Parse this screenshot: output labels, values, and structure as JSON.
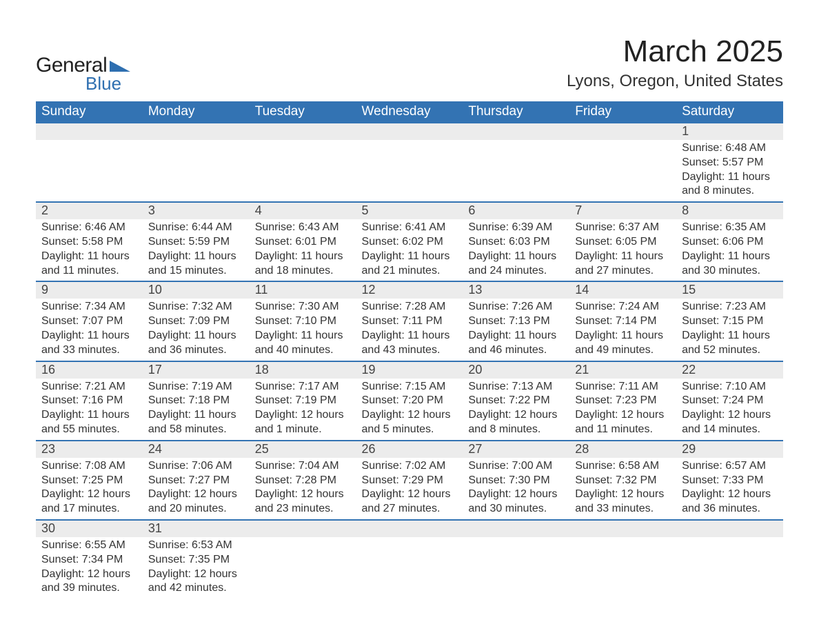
{
  "logo": {
    "line1": "General",
    "line2": "Blue",
    "tri_color": "#2e6fb0"
  },
  "title": "March 2025",
  "subtitle": "Lyons, Oregon, United States",
  "theme": {
    "header_bg": "#3373b3",
    "header_fg": "#ffffff",
    "daynum_bg": "#ececec",
    "row_border": "#3373b3",
    "text": "#333333"
  },
  "day_headers": [
    "Sunday",
    "Monday",
    "Tuesday",
    "Wednesday",
    "Thursday",
    "Friday",
    "Saturday"
  ],
  "weeks": [
    [
      null,
      null,
      null,
      null,
      null,
      null,
      {
        "n": "1",
        "sr": "6:48 AM",
        "ss": "5:57 PM",
        "dl": "11 hours and 8 minutes."
      }
    ],
    [
      {
        "n": "2",
        "sr": "6:46 AM",
        "ss": "5:58 PM",
        "dl": "11 hours and 11 minutes."
      },
      {
        "n": "3",
        "sr": "6:44 AM",
        "ss": "5:59 PM",
        "dl": "11 hours and 15 minutes."
      },
      {
        "n": "4",
        "sr": "6:43 AM",
        "ss": "6:01 PM",
        "dl": "11 hours and 18 minutes."
      },
      {
        "n": "5",
        "sr": "6:41 AM",
        "ss": "6:02 PM",
        "dl": "11 hours and 21 minutes."
      },
      {
        "n": "6",
        "sr": "6:39 AM",
        "ss": "6:03 PM",
        "dl": "11 hours and 24 minutes."
      },
      {
        "n": "7",
        "sr": "6:37 AM",
        "ss": "6:05 PM",
        "dl": "11 hours and 27 minutes."
      },
      {
        "n": "8",
        "sr": "6:35 AM",
        "ss": "6:06 PM",
        "dl": "11 hours and 30 minutes."
      }
    ],
    [
      {
        "n": "9",
        "sr": "7:34 AM",
        "ss": "7:07 PM",
        "dl": "11 hours and 33 minutes."
      },
      {
        "n": "10",
        "sr": "7:32 AM",
        "ss": "7:09 PM",
        "dl": "11 hours and 36 minutes."
      },
      {
        "n": "11",
        "sr": "7:30 AM",
        "ss": "7:10 PM",
        "dl": "11 hours and 40 minutes."
      },
      {
        "n": "12",
        "sr": "7:28 AM",
        "ss": "7:11 PM",
        "dl": "11 hours and 43 minutes."
      },
      {
        "n": "13",
        "sr": "7:26 AM",
        "ss": "7:13 PM",
        "dl": "11 hours and 46 minutes."
      },
      {
        "n": "14",
        "sr": "7:24 AM",
        "ss": "7:14 PM",
        "dl": "11 hours and 49 minutes."
      },
      {
        "n": "15",
        "sr": "7:23 AM",
        "ss": "7:15 PM",
        "dl": "11 hours and 52 minutes."
      }
    ],
    [
      {
        "n": "16",
        "sr": "7:21 AM",
        "ss": "7:16 PM",
        "dl": "11 hours and 55 minutes."
      },
      {
        "n": "17",
        "sr": "7:19 AM",
        "ss": "7:18 PM",
        "dl": "11 hours and 58 minutes."
      },
      {
        "n": "18",
        "sr": "7:17 AM",
        "ss": "7:19 PM",
        "dl": "12 hours and 1 minute."
      },
      {
        "n": "19",
        "sr": "7:15 AM",
        "ss": "7:20 PM",
        "dl": "12 hours and 5 minutes."
      },
      {
        "n": "20",
        "sr": "7:13 AM",
        "ss": "7:22 PM",
        "dl": "12 hours and 8 minutes."
      },
      {
        "n": "21",
        "sr": "7:11 AM",
        "ss": "7:23 PM",
        "dl": "12 hours and 11 minutes."
      },
      {
        "n": "22",
        "sr": "7:10 AM",
        "ss": "7:24 PM",
        "dl": "12 hours and 14 minutes."
      }
    ],
    [
      {
        "n": "23",
        "sr": "7:08 AM",
        "ss": "7:25 PM",
        "dl": "12 hours and 17 minutes."
      },
      {
        "n": "24",
        "sr": "7:06 AM",
        "ss": "7:27 PM",
        "dl": "12 hours and 20 minutes."
      },
      {
        "n": "25",
        "sr": "7:04 AM",
        "ss": "7:28 PM",
        "dl": "12 hours and 23 minutes."
      },
      {
        "n": "26",
        "sr": "7:02 AM",
        "ss": "7:29 PM",
        "dl": "12 hours and 27 minutes."
      },
      {
        "n": "27",
        "sr": "7:00 AM",
        "ss": "7:30 PM",
        "dl": "12 hours and 30 minutes."
      },
      {
        "n": "28",
        "sr": "6:58 AM",
        "ss": "7:32 PM",
        "dl": "12 hours and 33 minutes."
      },
      {
        "n": "29",
        "sr": "6:57 AM",
        "ss": "7:33 PM",
        "dl": "12 hours and 36 minutes."
      }
    ],
    [
      {
        "n": "30",
        "sr": "6:55 AM",
        "ss": "7:34 PM",
        "dl": "12 hours and 39 minutes."
      },
      {
        "n": "31",
        "sr": "6:53 AM",
        "ss": "7:35 PM",
        "dl": "12 hours and 42 minutes."
      },
      null,
      null,
      null,
      null,
      null
    ]
  ],
  "labels": {
    "sunrise": "Sunrise: ",
    "sunset": "Sunset: ",
    "daylight": "Daylight: "
  }
}
